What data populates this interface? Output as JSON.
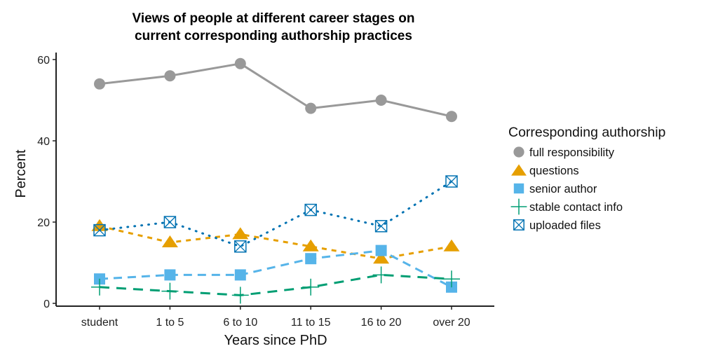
{
  "chart_data": {
    "type": "line",
    "title_lines": [
      "Views of people at different career stages on",
      "current corresponding authorship practices"
    ],
    "xlabel": "Years since PhD",
    "ylabel": "Percent",
    "categories": [
      "student",
      "1 to 5",
      "6 to 10",
      "11 to 15",
      "16 to 20",
      "over 20"
    ],
    "ylim": [
      0,
      62
    ],
    "yticks": [
      0,
      20,
      40,
      60
    ],
    "grid": false,
    "legend": {
      "title": "Corresponding authorship",
      "placement": "right"
    },
    "series": [
      {
        "name": "full responsibility",
        "color": "#999999",
        "marker": "circle",
        "linestyle": "solid",
        "values": [
          54,
          56,
          59,
          48,
          50,
          46
        ]
      },
      {
        "name": "questions",
        "color": "#E69F00",
        "marker": "triangle",
        "linestyle": "dashed-short",
        "values": [
          19,
          15,
          17,
          14,
          11,
          14
        ]
      },
      {
        "name": "senior author",
        "color": "#56B4E9",
        "marker": "square",
        "linestyle": "dashed",
        "values": [
          6,
          7,
          7,
          11,
          13,
          4
        ]
      },
      {
        "name": "stable contact info",
        "color": "#009E73",
        "marker": "plus",
        "linestyle": "longdash",
        "values": [
          4,
          3,
          2,
          4,
          7,
          6
        ]
      },
      {
        "name": "uploaded files",
        "color": "#0072B2",
        "marker": "square-x",
        "linestyle": "dotted",
        "values": [
          18,
          20,
          14,
          23,
          19,
          30
        ]
      }
    ]
  }
}
